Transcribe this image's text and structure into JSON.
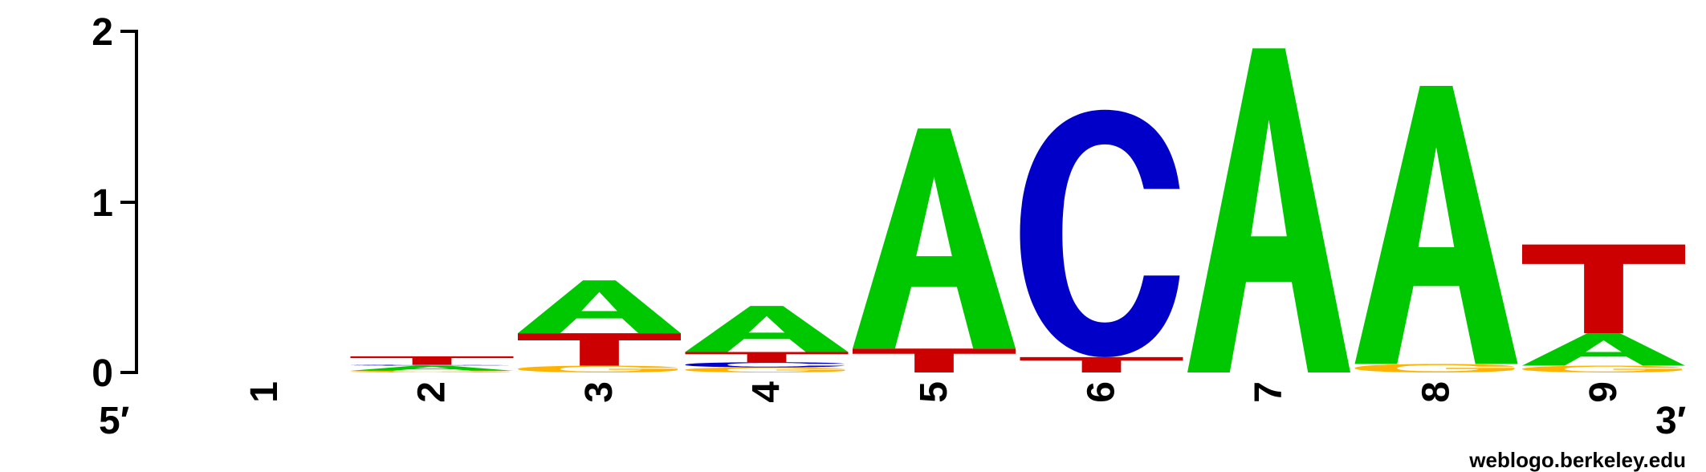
{
  "chart_data": {
    "type": "sequence_logo",
    "ylim": [
      0,
      2
    ],
    "y_ticks": [
      "0",
      "1",
      "2"
    ],
    "positions": [
      "1",
      "2",
      "3",
      "4",
      "5",
      "6",
      "7",
      "8",
      "9"
    ],
    "end_labels": {
      "left": "5′",
      "right": "3′"
    },
    "credit": "weblogo.berkeley.edu",
    "colors": {
      "A": "#00c800",
      "C": "#0000c8",
      "G": "#ffb300",
      "T": "#cc0000"
    },
    "stacks": [
      [],
      [
        {
          "letter": "G",
          "value": 0.01
        },
        {
          "letter": "A",
          "value": 0.03
        },
        {
          "letter": "C",
          "value": 0.005
        },
        {
          "letter": "T",
          "value": 0.05
        }
      ],
      [
        {
          "letter": "G",
          "value": 0.04
        },
        {
          "letter": "T",
          "value": 0.19
        },
        {
          "letter": "A",
          "value": 0.31
        }
      ],
      [
        {
          "letter": "G",
          "value": 0.03
        },
        {
          "letter": "C",
          "value": 0.03
        },
        {
          "letter": "T",
          "value": 0.06
        },
        {
          "letter": "A",
          "value": 0.27
        }
      ],
      [
        {
          "letter": "T",
          "value": 0.14
        },
        {
          "letter": "A",
          "value": 1.29
        }
      ],
      [
        {
          "letter": "T",
          "value": 0.09
        },
        {
          "letter": "C",
          "value": 1.45
        }
      ],
      [
        {
          "letter": "A",
          "value": 1.9
        }
      ],
      [
        {
          "letter": "G",
          "value": 0.05
        },
        {
          "letter": "A",
          "value": 1.63
        }
      ],
      [
        {
          "letter": "G",
          "value": 0.04
        },
        {
          "letter": "A",
          "value": 0.19
        },
        {
          "letter": "T",
          "value": 0.52
        }
      ]
    ]
  }
}
